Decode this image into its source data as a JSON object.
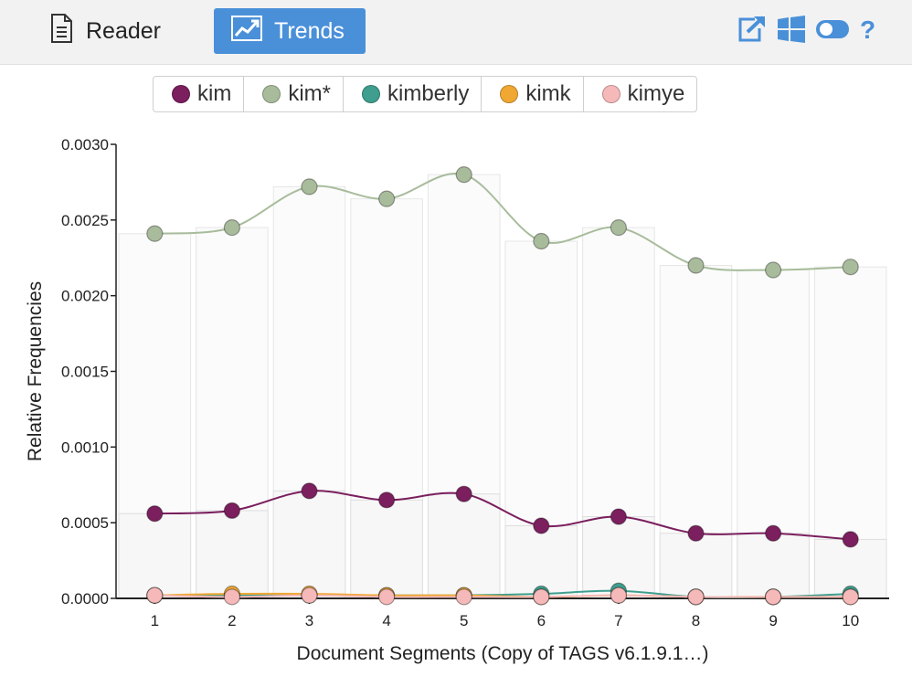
{
  "toolbar": {
    "tabs": [
      {
        "label": "Reader",
        "icon": "document-icon",
        "active": false
      },
      {
        "label": "Trends",
        "icon": "line-chart-icon",
        "active": true
      }
    ],
    "tools": [
      "external-link-icon",
      "windows-icon",
      "toggle-icon",
      "help-icon"
    ],
    "accent_color": "#4a90d9",
    "icon_color": "#4a90d9"
  },
  "chart_data": {
    "type": "line",
    "xlabel": "Document Segments (Copy of TAGS v6.1.9.1…)",
    "ylabel": "Relative Frequencies",
    "categories": [
      "1",
      "2",
      "3",
      "4",
      "5",
      "6",
      "7",
      "8",
      "9",
      "10"
    ],
    "ylim": [
      0,
      0.003
    ],
    "yticks": [
      "0.0000",
      "0.0005",
      "0.0010",
      "0.0015",
      "0.0020",
      "0.0025",
      "0.0030"
    ],
    "series": [
      {
        "name": "kim",
        "color": "#7b1f5e",
        "values": [
          0.00056,
          0.00058,
          0.00071,
          0.00065,
          0.00069,
          0.00048,
          0.00054,
          0.00043,
          0.00043,
          0.00039
        ]
      },
      {
        "name": "kim*",
        "color": "#a8bc9c",
        "values": [
          0.00241,
          0.00245,
          0.00272,
          0.00264,
          0.0028,
          0.00236,
          0.00245,
          0.0022,
          0.00217,
          0.00219
        ]
      },
      {
        "name": "kimberly",
        "color": "#3f9e8e",
        "values": [
          2e-05,
          2e-05,
          2e-05,
          2e-05,
          2e-05,
          3e-05,
          5e-05,
          1e-05,
          1e-05,
          3e-05
        ]
      },
      {
        "name": "kimk",
        "color": "#f0a833",
        "values": [
          2e-05,
          3e-05,
          3e-05,
          2e-05,
          2e-05,
          1e-05,
          2e-05,
          1e-05,
          1e-05,
          1e-05
        ]
      },
      {
        "name": "kimye",
        "color": "#f6b9b9",
        "values": [
          2e-05,
          1e-05,
          2e-05,
          1e-05,
          1e-05,
          1e-05,
          2e-05,
          1e-05,
          1e-05,
          1e-05
        ]
      }
    ],
    "background_bars": "kim*",
    "grid": false
  }
}
